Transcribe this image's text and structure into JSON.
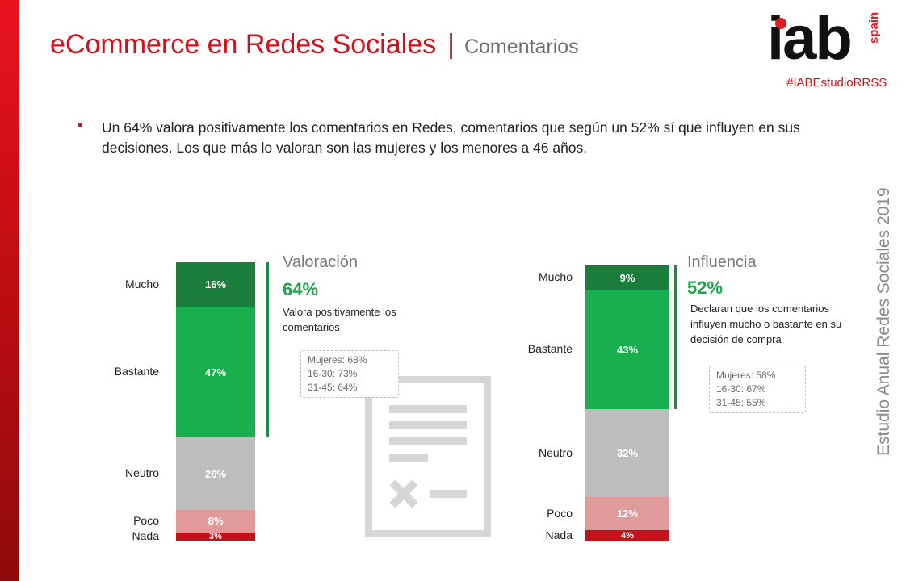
{
  "header": {
    "title": "eCommerce en Redes Sociales",
    "separator": "|",
    "subtitle": "Comentarios"
  },
  "logo": {
    "brand": "iab",
    "country": "spain",
    "hashtag": "#IABEstudioRRSS"
  },
  "intro": {
    "bullet": "•",
    "text": "Un 64% valora positivamente los comentarios en Redes, comentarios que según un 52% sí que influyen en sus decisiones. Los que más lo valoran son las mujeres y los menores a 46 años."
  },
  "side_title": "Estudio Anual Redes Sociales 2019",
  "icon": "document-with-x-icon",
  "colors": {
    "mucho": "#1b7d3c",
    "bastante": "#18b04f",
    "neutro": "#bdbdbd",
    "poco": "#e19a9a",
    "nada": "#c4121a",
    "accent_red": "#d6101a",
    "highlight_green": "#1fa64b"
  },
  "chart_data": [
    {
      "type": "bar",
      "stacked": true,
      "title": "Valoración",
      "categories": [
        "Mucho",
        "Bastante",
        "Neutro",
        "Poco",
        "Nada"
      ],
      "values": [
        16,
        47,
        26,
        8,
        3
      ],
      "labels": [
        "16%",
        "47%",
        "26%",
        "8%",
        "3%"
      ],
      "highlight": {
        "value": "64%",
        "description": "Valora positivamente los comentarios",
        "details": [
          "Mujeres: 68%",
          "16-30: 73%",
          "31-45: 64%"
        ]
      }
    },
    {
      "type": "bar",
      "stacked": true,
      "title": "Influencia",
      "categories": [
        "Mucho",
        "Bastante",
        "Neutro",
        "Poco",
        "Nada"
      ],
      "values": [
        9,
        43,
        32,
        12,
        4
      ],
      "labels": [
        "9%",
        "43%",
        "32%",
        "12%",
        "4%"
      ],
      "highlight": {
        "value": "52%",
        "description": "Declaran que los comentarios influyen mucho o bastante en su decisión de compra",
        "details": [
          "Mujeres: 58%",
          "16-30: 67%",
          "31-45: 55%"
        ]
      }
    }
  ]
}
